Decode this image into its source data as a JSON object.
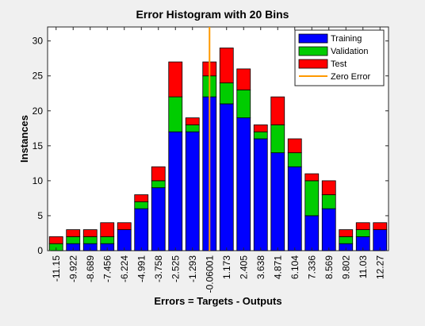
{
  "chart_data": {
    "type": "bar",
    "stacked": true,
    "title": "Error Histogram with 20 Bins",
    "xlabel": "Errors = Targets - Outputs",
    "ylabel": "Instances",
    "ylim": [
      0,
      32
    ],
    "yticks": [
      0,
      5,
      10,
      15,
      20,
      25,
      30
    ],
    "grid": false,
    "legend_position": "top-right",
    "categories": [
      "-11.15",
      "-9.922",
      "-8.689",
      "-7.456",
      "-6.224",
      "-4.991",
      "-3.758",
      "-2.525",
      "-1.293",
      "-0.06001",
      "1.173",
      "2.405",
      "3.638",
      "4.871",
      "6.104",
      "7.336",
      "8.569",
      "9.802",
      "11.03",
      "12.27"
    ],
    "series": [
      {
        "name": "Training",
        "color": "#0000ff",
        "values": [
          0,
          1,
          1,
          1,
          3,
          6,
          9,
          17,
          17,
          22,
          21,
          19,
          16,
          14,
          12,
          5,
          6,
          1,
          2,
          3
        ]
      },
      {
        "name": "Validation",
        "color": "#00cc00",
        "values": [
          1,
          1,
          1,
          1,
          0,
          1,
          1,
          5,
          1,
          3,
          3,
          4,
          1,
          4,
          2,
          5,
          2,
          1,
          1,
          0
        ]
      },
      {
        "name": "Test",
        "color": "#ff0000",
        "values": [
          1,
          1,
          1,
          2,
          1,
          1,
          2,
          5,
          1,
          2,
          5,
          3,
          1,
          4,
          2,
          1,
          2,
          1,
          1,
          1
        ]
      }
    ],
    "reference_line": {
      "name": "Zero Error",
      "x": -0.06001,
      "color": "#ff9900"
    }
  }
}
